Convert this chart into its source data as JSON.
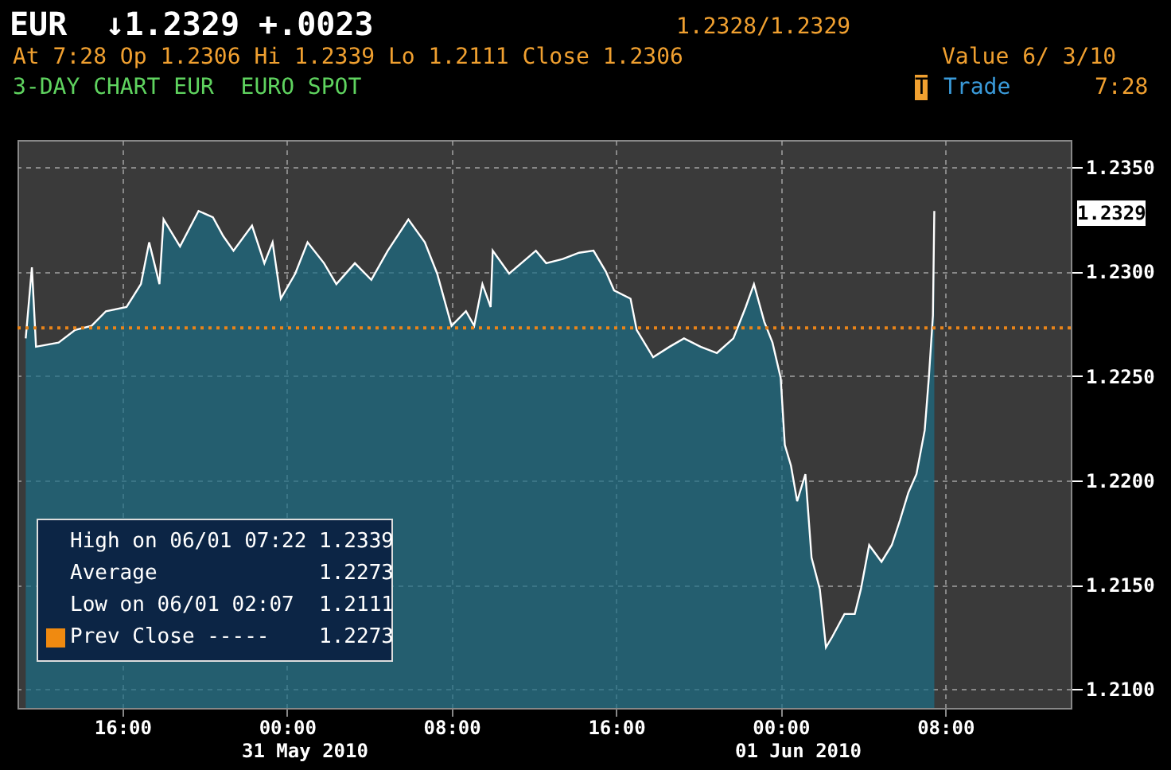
{
  "chart_data": {
    "type": "area",
    "title": "EUR  ↓1.2329 +.0023",
    "x": [
      "2010-05-30T11:18",
      "2010-05-30T11:36",
      "2010-05-30T11:48",
      "2010-05-30T12:54",
      "2010-05-30T13:42",
      "2010-05-30T14:30",
      "2010-05-30T15:12",
      "2010-05-30T16:12",
      "2010-05-30T16:54",
      "2010-05-30T17:18",
      "2010-05-30T17:48",
      "2010-05-30T18:00",
      "2010-05-30T18:48",
      "2010-05-30T19:42",
      "2010-05-30T20:24",
      "2010-05-30T20:54",
      "2010-05-30T21:24",
      "2010-05-30T22:18",
      "2010-05-30T22:54",
      "2010-05-30T23:18",
      "2010-05-30T23:42",
      "2010-05-31T00:24",
      "2010-05-31T01:00",
      "2010-05-31T01:48",
      "2010-05-31T02:24",
      "2010-05-31T03:18",
      "2010-05-31T04:06",
      "2010-05-31T04:54",
      "2010-05-31T05:54",
      "2010-05-31T06:42",
      "2010-05-31T07:18",
      "2010-05-31T08:00",
      "2010-05-31T08:42",
      "2010-05-31T09:06",
      "2010-05-31T09:30",
      "2010-05-31T09:54",
      "2010-05-31T10:00",
      "2010-05-31T10:48",
      "2010-05-31T12:06",
      "2010-05-31T12:36",
      "2010-05-31T13:24",
      "2010-05-31T14:12",
      "2010-05-31T14:54",
      "2010-05-31T15:30",
      "2010-05-31T15:54",
      "2010-05-31T16:42",
      "2010-05-31T17:00",
      "2010-05-31T17:48",
      "2010-05-31T18:36",
      "2010-05-31T19:18",
      "2010-05-31T20:06",
      "2010-05-31T20:54",
      "2010-05-31T21:42",
      "2010-05-31T22:18",
      "2010-05-31T22:42",
      "2010-05-31T23:12",
      "2010-05-31T23:36",
      "2010-06-01T00:00",
      "2010-06-01T00:12",
      "2010-06-01T00:30",
      "2010-06-01T00:48",
      "2010-06-01T01:12",
      "2010-06-01T01:30",
      "2010-06-01T01:54",
      "2010-06-01T02:12",
      "2010-06-01T02:30",
      "2010-06-01T03:06",
      "2010-06-01T03:36",
      "2010-06-01T03:54",
      "2010-06-01T04:18",
      "2010-06-01T04:54",
      "2010-06-01T05:24",
      "2010-06-01T05:48",
      "2010-06-01T06:12",
      "2010-06-01T06:36",
      "2010-06-01T07:00",
      "2010-06-01T07:12",
      "2010-06-01T07:24",
      "2010-06-01T07:28"
    ],
    "series": [
      {
        "color": "#1b6d86",
        "values": [
          1.2268,
          1.2302,
          1.2264,
          1.2266,
          1.2272,
          1.2274,
          1.2281,
          1.2283,
          1.2294,
          1.2314,
          1.2294,
          1.2325,
          1.2312,
          1.2329,
          1.2326,
          1.2317,
          1.231,
          1.2322,
          1.2304,
          1.2314,
          1.2287,
          1.2299,
          1.2314,
          1.2304,
          1.2294,
          1.2304,
          1.2296,
          1.231,
          1.2325,
          1.2314,
          1.2299,
          1.2274,
          1.2281,
          1.2274,
          1.2294,
          1.2283,
          1.231,
          1.2299,
          1.231,
          1.2304,
          1.2306,
          1.2309,
          1.231,
          1.23,
          1.2291,
          1.2287,
          1.2272,
          1.2259,
          1.2264,
          1.2268,
          1.2264,
          1.2261,
          1.2268,
          1.2283,
          1.2294,
          1.2276,
          1.2266,
          1.2249,
          1.2217,
          1.2207,
          1.219,
          1.2203,
          1.2163,
          1.2148,
          1.212,
          1.2125,
          1.2136,
          1.2136,
          1.2148,
          1.2169,
          1.2161,
          1.2169,
          1.2181,
          1.2194,
          1.2203,
          1.2224,
          1.2249,
          1.2279,
          1.2329
        ]
      }
    ],
    "xlim": [
      "2010-05-30T10:54",
      "2010-06-01T14:06"
    ],
    "xticks": [
      {
        "value": "2010-05-30T16:00",
        "label": "16:00"
      },
      {
        "value": "2010-05-31T00:00",
        "label": "00:00"
      },
      {
        "value": "2010-05-31T08:00",
        "label": "08:00"
      },
      {
        "value": "2010-05-31T16:00",
        "label": "16:00"
      },
      {
        "value": "2010-06-01T00:00",
        "label": "00:00"
      },
      {
        "value": "2010-06-01T08:00",
        "label": "08:00"
      }
    ],
    "ylim": [
      1.2091,
      1.2363
    ],
    "yticks": [
      {
        "value": 1.21,
        "label": "1.2100"
      },
      {
        "value": 1.215,
        "label": "1.2150"
      },
      {
        "value": 1.22,
        "label": "1.2200"
      },
      {
        "value": 1.225,
        "label": "1.2250"
      },
      {
        "value": 1.23,
        "label": "1.2300"
      },
      {
        "value": 1.235,
        "label": "1.2350"
      }
    ],
    "grid": true,
    "ref_lines": [
      {
        "axis": "y",
        "value": 1.2273,
        "color": "#e8841a",
        "line_style": "dotted"
      }
    ],
    "annotations": [
      "1.2328/1.2329",
      "At 7:28 Op 1.2306 Hi 1.2339 Lo 1.2111 Close 1.2306",
      "Value 6/ 3/10",
      "3-DAY CHART EUR  EURO SPOT",
      "T",
      "Trade",
      "7:28",
      "High on 06/01 07:22 1.2339",
      "Average             1.2273",
      "Low on 06/01 02:07  1.2111",
      "Prev Close -----    1.2273",
      "31 May 2010",
      "01 Jun 2010",
      "1.2329"
    ]
  }
}
